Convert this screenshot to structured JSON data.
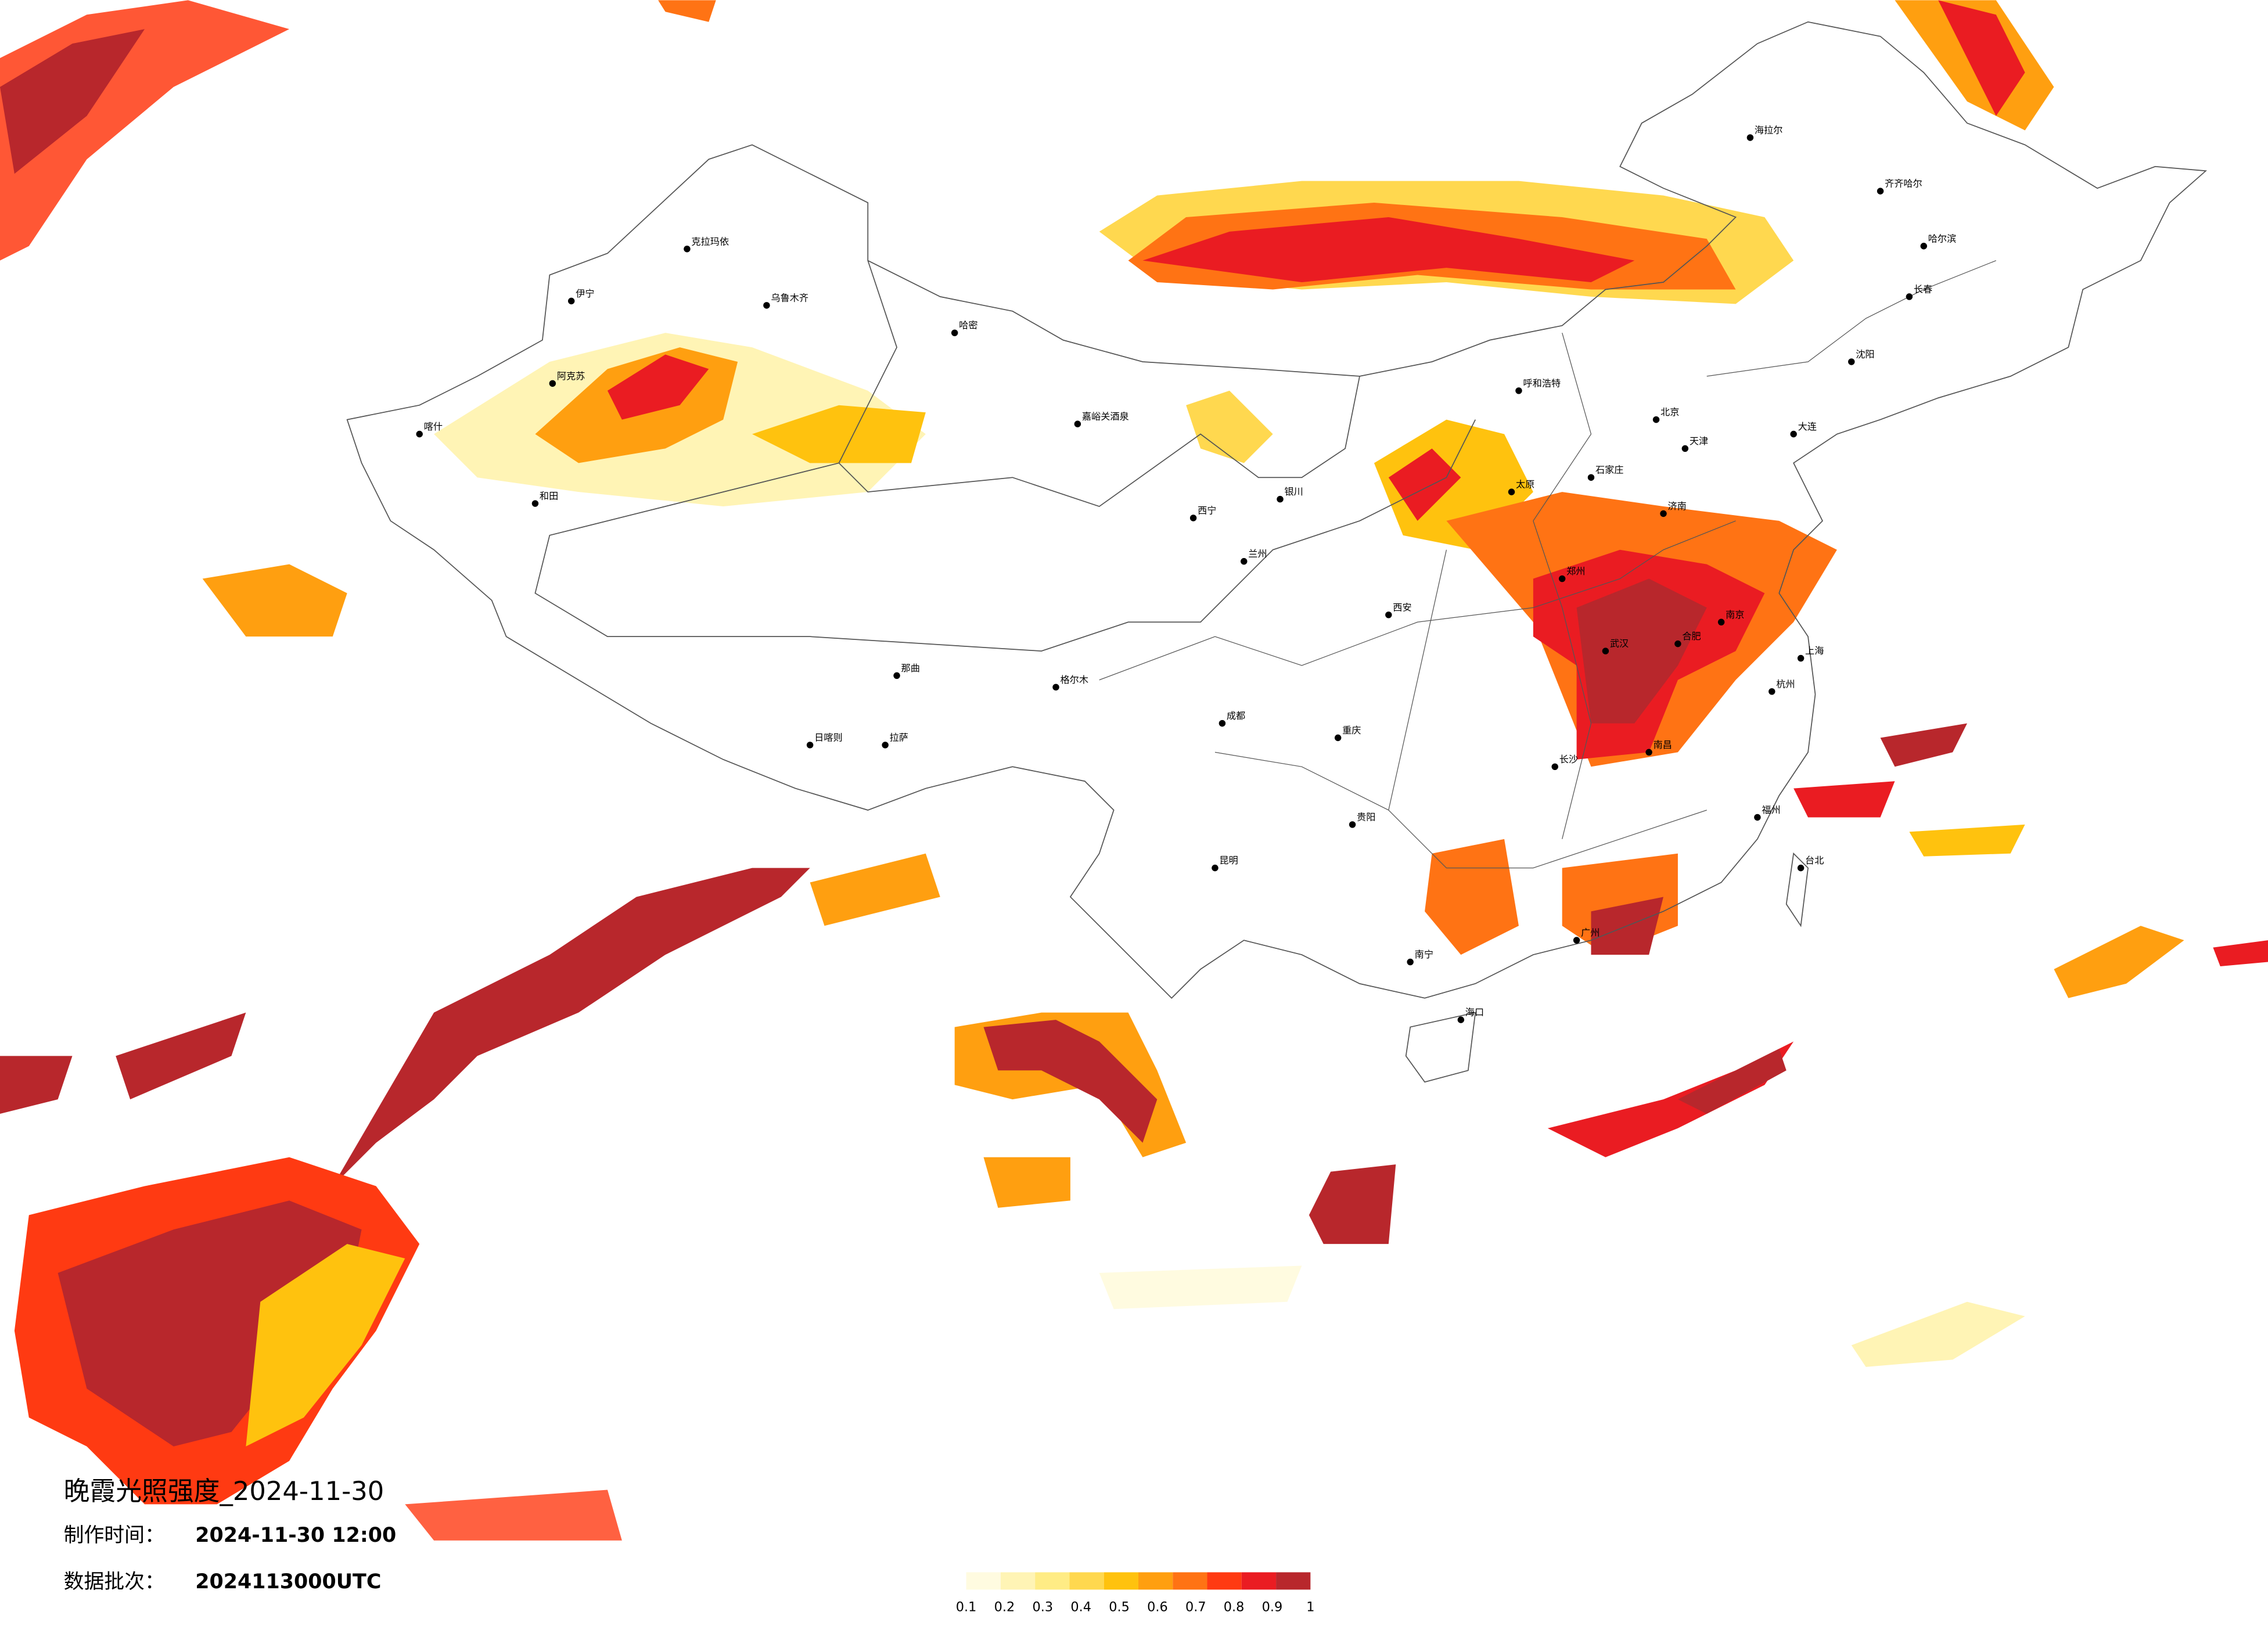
{
  "map": {
    "title": "晚霞光照强度_2024-11-30",
    "made_label": "制作时间：",
    "made_value": "2024-11-30 12:00",
    "batch_label": "数据批次：",
    "batch_value": "2024113000UTC",
    "legend": {
      "colors": [
        "#fffbe0",
        "#fff4b5",
        "#ffec85",
        "#ffd84f",
        "#ffc20e",
        "#ff9f10",
        "#ff7314",
        "#ff3a12",
        "#ea1c22",
        "#b8272c"
      ],
      "ticks": [
        0.1,
        0.2,
        0.3,
        0.4,
        0.5,
        0.6,
        0.7,
        0.8,
        0.9,
        1
      ]
    },
    "cities": [
      "乌鲁木齐",
      "克拉玛依",
      "伊宁",
      "阿克苏",
      "喀什",
      "和田",
      "哈密",
      "嘉峪关酒泉",
      "格尔木",
      "拉萨",
      "日喀则",
      "那曲",
      "西宁",
      "兰州",
      "银川",
      "呼和浩特",
      "北京",
      "天津",
      "石家庄",
      "太原",
      "济南",
      "郑州",
      "西安",
      "成都",
      "重庆",
      "武汉",
      "南京",
      "上海",
      "杭州",
      "合肥",
      "长沙",
      "南昌",
      "福州",
      "广州",
      "南宁",
      "昆明",
      "贵阳",
      "海口",
      "台北",
      "哈尔滨",
      "长春",
      "沈阳",
      "大连",
      "海拉尔",
      "齐齐哈尔"
    ]
  }
}
